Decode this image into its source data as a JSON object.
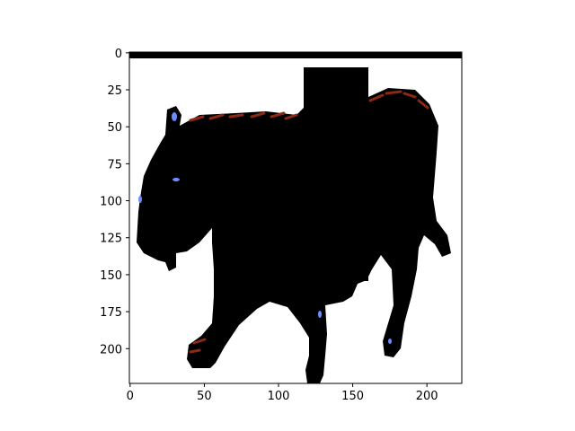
{
  "figure": {
    "background": "#ffffff",
    "axes_color": "#000000",
    "image_description_colors": {
      "silhouette": "#000000",
      "stripes": "#8a2a14",
      "highlight": "#6a8cff"
    }
  },
  "axes": {
    "x_ticks": [
      "0",
      "50",
      "100",
      "150",
      "200"
    ],
    "y_ticks": [
      "0",
      "25",
      "50",
      "75",
      "100",
      "125",
      "150",
      "175",
      "200"
    ],
    "x_tick_values": [
      0,
      50,
      100,
      150,
      200
    ],
    "y_tick_values": [
      0,
      25,
      50,
      75,
      100,
      125,
      150,
      175,
      200
    ],
    "x_range": [
      -0.5,
      223.5
    ],
    "y_range": [
      223.5,
      -0.5
    ]
  }
}
